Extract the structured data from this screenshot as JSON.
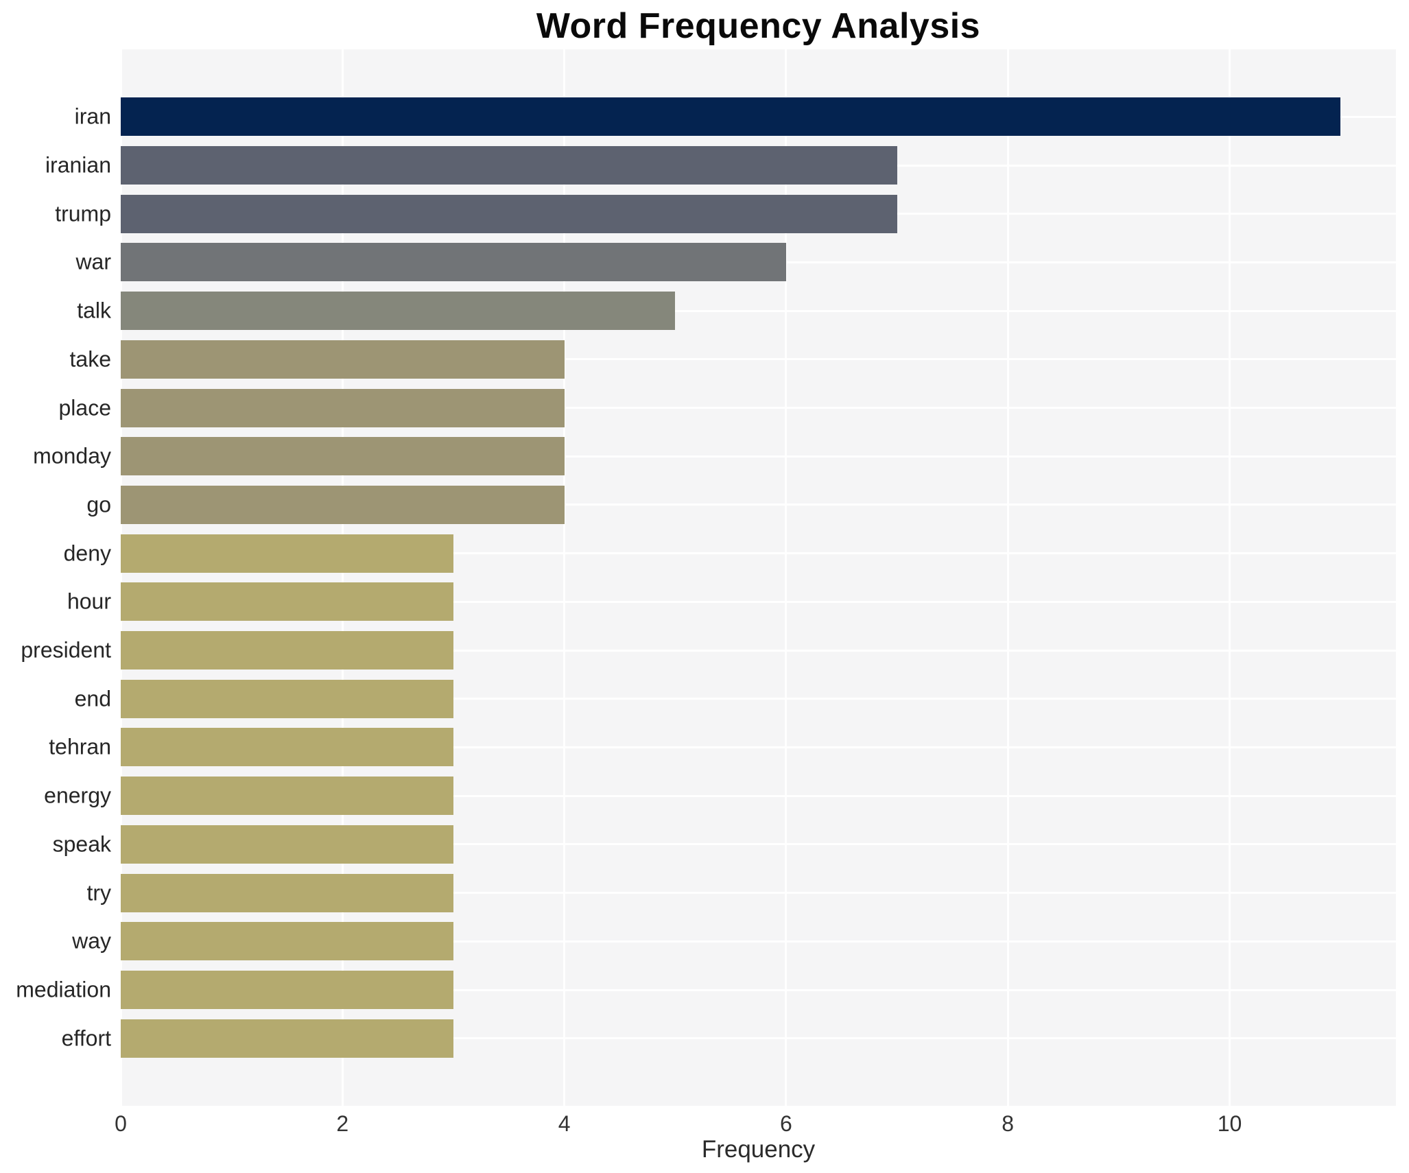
{
  "chart_data": {
    "type": "bar",
    "orientation": "horizontal",
    "title": "Word Frequency Analysis",
    "xlabel": "Frequency",
    "ylabel": "",
    "categories": [
      "iran",
      "iranian",
      "trump",
      "war",
      "talk",
      "take",
      "place",
      "monday",
      "go",
      "deny",
      "hour",
      "president",
      "end",
      "tehran",
      "energy",
      "speak",
      "try",
      "way",
      "mediation",
      "effort"
    ],
    "values": [
      11,
      7,
      7,
      6,
      5,
      4,
      4,
      4,
      4,
      3,
      3,
      3,
      3,
      3,
      3,
      3,
      3,
      3,
      3,
      3
    ],
    "colors": [
      "#042350",
      "#5d6270",
      "#5d6270",
      "#717477",
      "#85877b",
      "#9d9574",
      "#9d9574",
      "#9d9574",
      "#9d9574",
      "#b4aa6f",
      "#b4aa6f",
      "#b4aa6f",
      "#b4aa6f",
      "#b4aa6f",
      "#b4aa6f",
      "#b4aa6f",
      "#b4aa6f",
      "#b4aa6f",
      "#b4aa6f",
      "#b4aa6f"
    ],
    "color_by_value": {
      "11": "#042350",
      "7": "#5d6270",
      "6": "#717477",
      "5": "#85877b",
      "4": "#9d9574",
      "3": "#b4aa6f"
    },
    "xlim": [
      0,
      11.5
    ],
    "x_ticks": [
      0,
      2,
      4,
      6,
      8,
      10
    ],
    "grid": true,
    "legend": false,
    "plot_background": "#f5f5f6",
    "grid_color": "#ffffff"
  }
}
